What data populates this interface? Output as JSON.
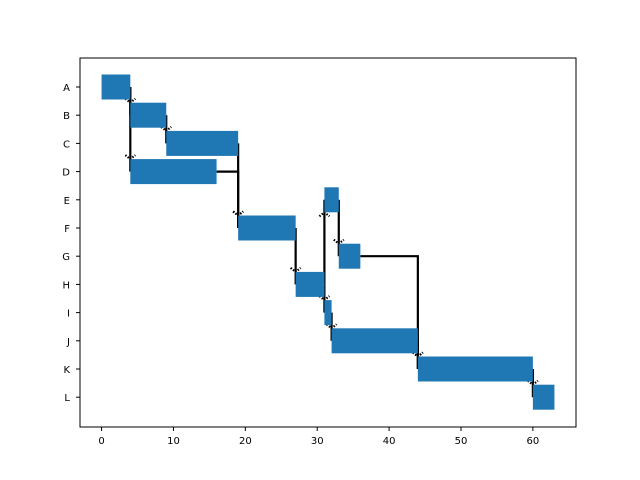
{
  "chart_data": {
    "type": "gantt",
    "title": "",
    "xlabel": "",
    "ylabel": "",
    "xlim": [
      -3,
      66
    ],
    "xticks": [
      0,
      10,
      20,
      30,
      40,
      50,
      60
    ],
    "bar_color": "#1f77b4",
    "link_color": "#000000",
    "tasks": [
      {
        "name": "A",
        "start": 0,
        "end": 4
      },
      {
        "name": "B",
        "start": 4,
        "end": 9
      },
      {
        "name": "C",
        "start": 9,
        "end": 19
      },
      {
        "name": "D",
        "start": 4,
        "end": 16
      },
      {
        "name": "E",
        "start": 31,
        "end": 33
      },
      {
        "name": "F",
        "start": 19,
        "end": 27
      },
      {
        "name": "G",
        "start": 33,
        "end": 36
      },
      {
        "name": "H",
        "start": 27,
        "end": 31
      },
      {
        "name": "I",
        "start": 31,
        "end": 32
      },
      {
        "name": "J",
        "start": 32,
        "end": 44
      },
      {
        "name": "K",
        "start": 44,
        "end": 60
      },
      {
        "name": "L",
        "start": 60,
        "end": 63
      }
    ],
    "dependencies": [
      {
        "from": "A",
        "to": "B"
      },
      {
        "from": "A",
        "to": "D"
      },
      {
        "from": "B",
        "to": "C"
      },
      {
        "from": "C",
        "to": "F"
      },
      {
        "from": "D",
        "to": "F"
      },
      {
        "from": "F",
        "to": "H"
      },
      {
        "from": "H",
        "to": "E"
      },
      {
        "from": "E",
        "to": "G"
      },
      {
        "from": "H",
        "to": "I"
      },
      {
        "from": "I",
        "to": "J"
      },
      {
        "from": "G",
        "to": "K"
      },
      {
        "from": "J",
        "to": "K"
      },
      {
        "from": "K",
        "to": "L"
      }
    ]
  }
}
